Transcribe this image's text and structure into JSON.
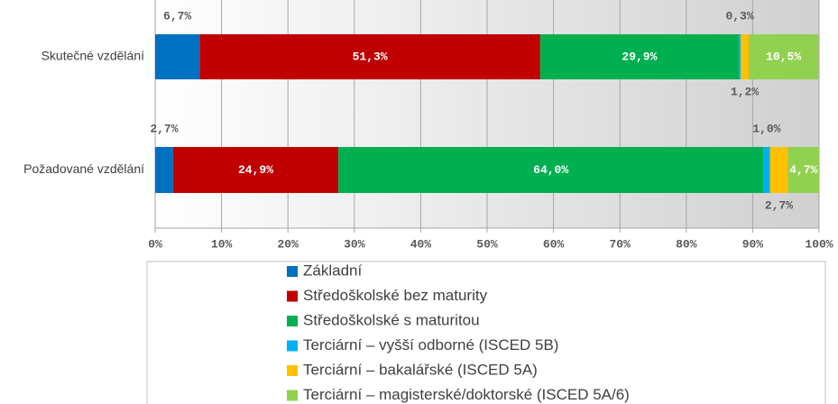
{
  "chart_data": {
    "type": "stacked-bar-horizontal",
    "categories": [
      "Skutečné vzdělání",
      "Požadované vzdělání"
    ],
    "series": [
      {
        "name": "Základní",
        "color": "#0070c0",
        "values": [
          6.7,
          2.7
        ],
        "value_labels": [
          "6,7%",
          "2,7%"
        ]
      },
      {
        "name": "Středoškolské bez maturity",
        "color": "#c00000",
        "values": [
          51.3,
          24.9
        ],
        "value_labels": [
          "51,3%",
          "24,9%"
        ]
      },
      {
        "name": "Středoškolské s maturitou",
        "color": "#00b050",
        "values": [
          29.9,
          64.0
        ],
        "value_labels": [
          "29,9%",
          "64,0%"
        ]
      },
      {
        "name": "Terciární – vyšší odborné (ISCED 5B)",
        "color": "#00b0f0",
        "values": [
          0.3,
          1.0
        ],
        "value_labels": [
          "0,3%",
          "1,0%"
        ]
      },
      {
        "name": "Terciární – bakalářské (ISCED 5A)",
        "color": "#ffc000",
        "values": [
          1.2,
          2.7
        ],
        "value_labels": [
          "1,2%",
          "2,7%"
        ]
      },
      {
        "name": "Terciární – magisterské/doktorské (ISCED 5A/6)",
        "color": "#92d050",
        "values": [
          10.5,
          4.7
        ],
        "value_labels": [
          "10,5%",
          "4,7%"
        ]
      }
    ],
    "xlim": [
      0,
      100
    ],
    "xticks": [
      {
        "value": 0,
        "label": "0%"
      },
      {
        "value": 10,
        "label": "10%"
      },
      {
        "value": 20,
        "label": "20%"
      },
      {
        "value": 30,
        "label": "30%"
      },
      {
        "value": 40,
        "label": "40%"
      },
      {
        "value": 50,
        "label": "50%"
      },
      {
        "value": 60,
        "label": "60%"
      },
      {
        "value": 70,
        "label": "70%"
      },
      {
        "value": 80,
        "label": "80%"
      },
      {
        "value": 90,
        "label": "90%"
      },
      {
        "value": 100,
        "label": "100%"
      }
    ],
    "grid": true
  }
}
